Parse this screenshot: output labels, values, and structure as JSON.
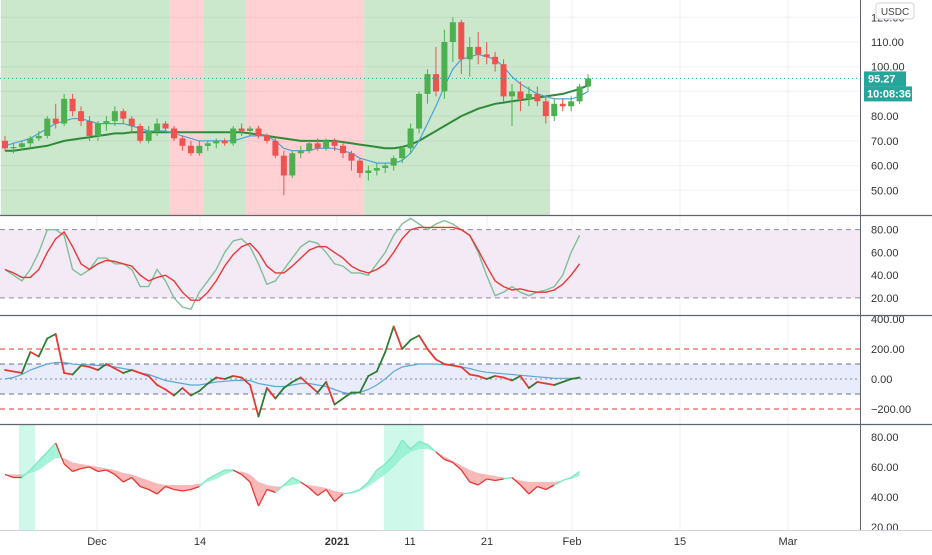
{
  "chart": {
    "currency_label": "USDC",
    "last_price_label": "95.27",
    "countdown_label": "10:08:36",
    "colors": {
      "up": "#26a69a",
      "up_candle": "#4caf50",
      "down": "#ef5350",
      "ma_fast": "#4aa3d8",
      "ma_slow": "#2e8b3a",
      "zone_green": "#c8e6c9",
      "zone_red": "#ffcdd2",
      "stoch_k": "#7fbf9a",
      "stoch_d": "#e53935",
      "cci_up": "#2e7d32",
      "cci_down": "#e53935",
      "cci_ma": "#5fa8d3",
      "panel_tint": "#f3eaf6",
      "cci_tint": "#e9ecfb"
    },
    "x_labels": [
      "Dec",
      "14",
      "2021",
      "11",
      "21",
      "Feb",
      "15",
      "Mar"
    ]
  },
  "chart_data": [
    {
      "type": "candlestick",
      "ylim": [
        40,
        127
      ],
      "yticks": [
        "120.00",
        "110.00",
        "100.00",
        "90.00",
        "80.00",
        "70.00",
        "60.00",
        "50.00"
      ],
      "last_price": 95.27,
      "candles": [
        [
          70,
          72,
          66,
          67
        ],
        [
          67,
          69,
          65,
          67.5
        ],
        [
          67.5,
          70,
          66,
          69
        ],
        [
          69,
          72,
          67,
          71
        ],
        [
          71,
          74,
          70,
          72
        ],
        [
          72,
          80,
          71,
          79
        ],
        [
          79,
          85,
          75,
          77
        ],
        [
          77,
          89,
          76,
          87
        ],
        [
          87,
          89,
          80,
          82
        ],
        [
          82,
          84,
          76,
          78
        ],
        [
          78,
          80,
          70,
          72
        ],
        [
          72,
          78,
          70,
          77
        ],
        [
          77,
          80,
          74,
          78
        ],
        [
          78,
          84,
          76,
          82
        ],
        [
          82,
          83,
          77,
          79
        ],
        [
          79,
          80,
          73,
          76
        ],
        [
          76,
          77,
          69,
          70
        ],
        [
          70,
          76,
          69,
          74
        ],
        [
          74,
          79,
          72,
          77
        ],
        [
          77,
          78,
          73,
          75
        ],
        [
          75,
          76,
          70,
          71
        ],
        [
          71,
          72,
          66,
          68
        ],
        [
          68,
          70,
          64,
          65
        ],
        [
          65,
          70,
          64,
          68
        ],
        [
          68,
          70,
          66,
          69
        ],
        [
          69,
          71,
          67,
          70
        ],
        [
          70,
          71,
          68,
          69
        ],
        [
          69,
          76,
          68,
          75
        ],
        [
          75,
          77,
          72,
          74
        ],
        [
          74,
          76,
          72,
          75
        ],
        [
          75,
          76,
          71,
          72
        ],
        [
          72,
          73,
          69,
          70
        ],
        [
          70,
          71,
          63,
          64
        ],
        [
          64,
          66,
          48,
          56
        ],
        [
          56,
          66,
          55,
          65
        ],
        [
          65,
          68,
          63,
          66
        ],
        [
          66,
          70,
          65,
          69
        ],
        [
          69,
          71,
          66,
          67
        ],
        [
          67,
          71,
          66,
          70
        ],
        [
          70,
          71,
          66,
          68
        ],
        [
          68,
          69,
          63,
          65
        ],
        [
          65,
          66,
          58,
          62
        ],
        [
          62,
          63,
          55,
          57
        ],
        [
          57,
          60,
          54,
          58
        ],
        [
          58,
          61,
          56,
          59
        ],
        [
          59,
          61,
          57,
          60
        ],
        [
          60,
          64,
          58,
          63
        ],
        [
          63,
          68,
          61,
          67
        ],
        [
          67,
          77,
          65,
          75
        ],
        [
          75,
          90,
          73,
          89
        ],
        [
          89,
          99,
          85,
          97
        ],
        [
          97,
          108,
          88,
          90
        ],
        [
          90,
          115,
          87,
          110
        ],
        [
          110,
          120,
          102,
          118
        ],
        [
          118,
          119,
          97,
          103
        ],
        [
          103,
          112,
          96,
          108
        ],
        [
          108,
          114,
          101,
          105
        ],
        [
          105,
          110,
          101,
          104
        ],
        [
          104,
          106,
          98,
          101
        ],
        [
          101,
          103,
          86,
          88
        ],
        [
          88,
          93,
          76,
          90
        ],
        [
          90,
          94,
          82,
          87
        ],
        [
          87,
          92,
          84,
          89
        ],
        [
          89,
          92,
          84,
          86
        ],
        [
          86,
          88,
          77,
          80
        ],
        [
          80,
          87,
          78,
          85
        ],
        [
          85,
          87,
          82,
          84
        ],
        [
          84,
          88,
          82,
          86
        ],
        [
          86,
          93,
          85,
          92
        ],
        [
          92,
          97,
          90,
          95.27
        ]
      ],
      "ma_fast": [
        68,
        69,
        70,
        71,
        73,
        75,
        77,
        78,
        79,
        79,
        78,
        77,
        77,
        77,
        77,
        76,
        75,
        74,
        74,
        74,
        73,
        72,
        71,
        70,
        70,
        70,
        70,
        70,
        71,
        72,
        72,
        72,
        70,
        67,
        66,
        66,
        66,
        67,
        67,
        67,
        66,
        65,
        63,
        62,
        61,
        61,
        61,
        62,
        65,
        70,
        77,
        84,
        92,
        99,
        103,
        104,
        105,
        104,
        103,
        100,
        96,
        93,
        91,
        89,
        88,
        87,
        87,
        87,
        88,
        90
      ],
      "ma_slow": [
        66,
        66,
        66.5,
        67,
        67.5,
        68,
        69,
        70,
        70.5,
        71,
        71.5,
        72,
        72.5,
        73,
        73,
        73.5,
        73.5,
        73.5,
        73.5,
        73.5,
        73.5,
        73.5,
        73.5,
        73.5,
        73.5,
        73.5,
        73.5,
        73.5,
        73.5,
        73,
        72.5,
        72,
        71.5,
        71,
        70.5,
        70,
        70,
        70,
        70,
        70,
        69.5,
        69,
        68.5,
        68,
        67.5,
        67,
        67,
        67.5,
        68.5,
        70,
        72,
        74,
        76,
        78,
        80,
        81.5,
        83,
        84,
        85,
        85.5,
        86,
        86.5,
        87,
        87.5,
        88,
        88.5,
        89,
        90,
        91,
        92.5
      ],
      "zones": [
        {
          "from": -0.5,
          "to": 19.5,
          "color": "green"
        },
        {
          "from": 19.5,
          "to": 23.5,
          "color": "red"
        },
        {
          "from": 23.5,
          "to": 28.5,
          "color": "green"
        },
        {
          "from": 28.5,
          "to": 42.5,
          "color": "red"
        },
        {
          "from": 42.5,
          "to": 64.5,
          "color": "green"
        }
      ]
    },
    {
      "type": "line",
      "name": "Stochastic",
      "ylim": [
        5,
        92
      ],
      "yticks": [
        "80.00",
        "60.00",
        "40.00",
        "20.00"
      ],
      "band": [
        20,
        80
      ],
      "k": [
        45,
        40,
        35,
        45,
        60,
        80,
        80,
        75,
        45,
        40,
        45,
        55,
        55,
        50,
        50,
        45,
        30,
        30,
        45,
        35,
        20,
        12,
        10,
        25,
        35,
        45,
        60,
        70,
        72,
        65,
        50,
        32,
        35,
        45,
        55,
        65,
        70,
        68,
        60,
        50,
        48,
        42,
        42,
        40,
        50,
        60,
        75,
        85,
        90,
        85,
        80,
        85,
        88,
        85,
        80,
        75,
        60,
        40,
        22,
        25,
        30,
        25,
        22,
        25,
        27,
        30,
        40,
        60,
        75
      ],
      "d": [
        45,
        42,
        38,
        38,
        45,
        60,
        72,
        78,
        65,
        50,
        45,
        50,
        53,
        52,
        50,
        48,
        40,
        35,
        38,
        40,
        35,
        25,
        18,
        18,
        25,
        35,
        48,
        58,
        65,
        68,
        60,
        48,
        42,
        42,
        48,
        55,
        62,
        65,
        65,
        60,
        55,
        48,
        44,
        42,
        45,
        50,
        60,
        72,
        80,
        82,
        82,
        82,
        82,
        82,
        80,
        75,
        62,
        48,
        35,
        30,
        27,
        28,
        26,
        25,
        25,
        27,
        32,
        40,
        50
      ]
    },
    {
      "type": "line",
      "name": "CCI",
      "ylim": [
        -300,
        420
      ],
      "yticks": [
        "400.00",
        "200.00",
        "0.00",
        "−200.00"
      ],
      "levels": [
        200,
        100,
        -100,
        -200
      ],
      "cci": [
        60,
        50,
        40,
        180,
        150,
        270,
        300,
        40,
        30,
        90,
        80,
        60,
        100,
        70,
        40,
        60,
        40,
        20,
        -40,
        -70,
        -110,
        -60,
        -110,
        -80,
        -30,
        10,
        0,
        20,
        10,
        -40,
        -250,
        -60,
        -130,
        -60,
        -20,
        10,
        -40,
        -90,
        -20,
        -170,
        -130,
        -90,
        -90,
        20,
        50,
        180,
        350,
        200,
        260,
        290,
        200,
        130,
        100,
        90,
        80,
        30,
        20,
        0,
        20,
        10,
        -10,
        20,
        -60,
        -20,
        -30,
        -40,
        -20,
        0,
        10
      ],
      "ma": [
        0,
        10,
        30,
        60,
        80,
        100,
        110,
        110,
        100,
        95,
        95,
        90,
        90,
        80,
        70,
        60,
        40,
        30,
        10,
        -10,
        -20,
        -30,
        -40,
        -40,
        -30,
        -20,
        -15,
        -10,
        -10,
        -10,
        -30,
        -40,
        -50,
        -50,
        -40,
        -30,
        -30,
        -40,
        -50,
        -70,
        -90,
        -100,
        -90,
        -70,
        -40,
        0,
        50,
        80,
        90,
        100,
        100,
        100,
        95,
        90,
        80,
        70,
        55,
        45,
        40,
        35,
        30,
        25,
        20,
        15,
        10,
        5,
        5,
        5,
        5
      ]
    },
    {
      "type": "area",
      "name": "Oscillator",
      "ylim": [
        18,
        88
      ],
      "yticks": [
        "80.00",
        "60.00",
        "40.00",
        "20.00"
      ],
      "main": [
        55,
        53,
        53,
        58,
        64,
        70,
        76,
        62,
        57,
        59,
        60,
        57,
        58,
        55,
        50,
        53,
        47,
        45,
        42,
        47,
        45,
        44,
        45,
        47,
        52,
        55,
        58,
        58,
        55,
        50,
        34,
        45,
        43,
        48,
        53,
        50,
        46,
        41,
        45,
        37,
        42,
        43,
        45,
        50,
        58,
        62,
        68,
        78,
        72,
        77,
        75,
        70,
        65,
        63,
        58,
        50,
        48,
        52,
        51,
        52,
        53,
        48,
        42,
        47,
        45,
        48,
        51,
        53,
        57
      ],
      "signal": [
        55,
        55,
        55,
        56,
        58,
        62,
        66,
        66,
        63,
        62,
        61,
        60,
        59,
        58,
        56,
        55,
        53,
        51,
        49,
        48,
        48,
        48,
        48,
        49,
        50,
        52,
        55,
        57,
        57,
        55,
        50,
        48,
        47,
        47,
        48,
        49,
        48,
        47,
        46,
        44,
        43,
        42,
        44,
        47,
        51,
        55,
        60,
        66,
        70,
        72,
        72,
        70,
        67,
        64,
        61,
        58,
        56,
        55,
        54,
        53,
        52,
        51,
        50,
        50,
        50,
        50,
        51,
        52,
        54
      ],
      "highlights": [
        [
          2,
          3.2
        ],
        [
          45.2,
          47.5
        ],
        [
          48.2,
          49.2
        ]
      ]
    }
  ]
}
